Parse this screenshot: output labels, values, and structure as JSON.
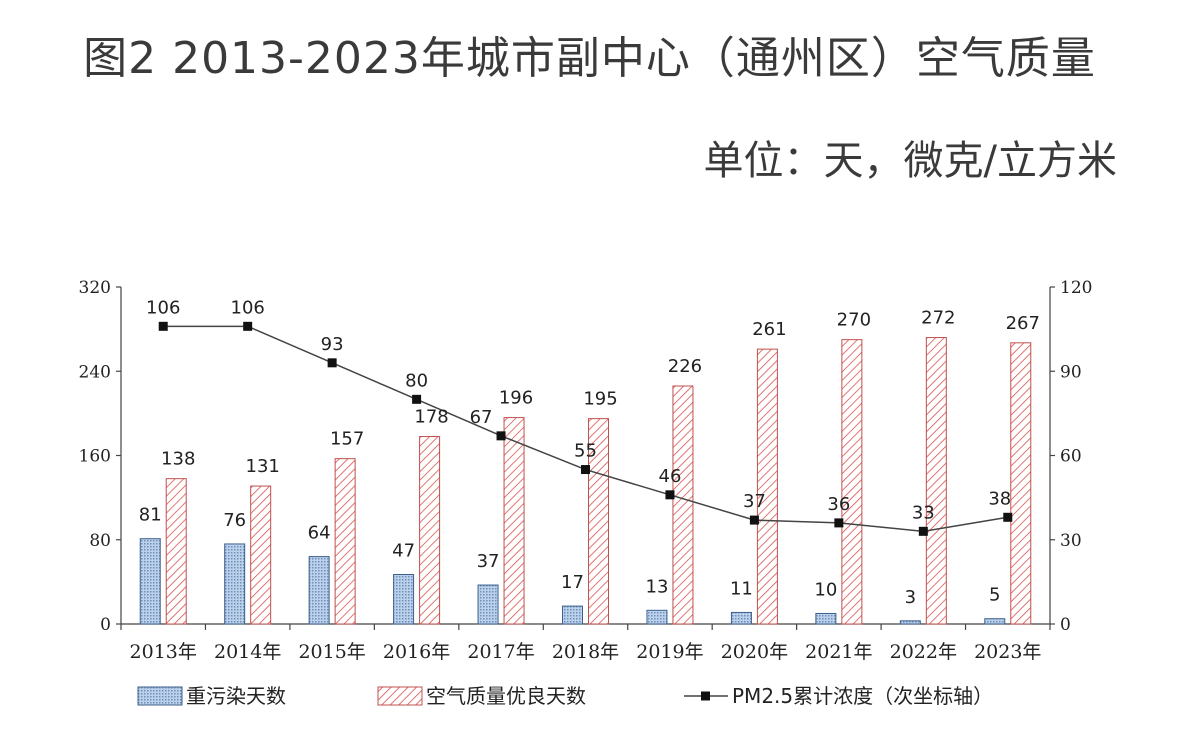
{
  "title": "图2  2013-2023年城市副中心（通州区）空气质量",
  "unit": "单位：天，微克/立方米",
  "chart_data": {
    "type": "bar",
    "categories": [
      "2013年",
      "2014年",
      "2015年",
      "2016年",
      "2017年",
      "2018年",
      "2019年",
      "2020年",
      "2021年",
      "2022年",
      "2023年"
    ],
    "ylim": [
      0,
      320
    ],
    "yticks": [
      "0",
      "80",
      "160",
      "240",
      "320"
    ],
    "y2lim": [
      0,
      120
    ],
    "y2ticks": [
      "0",
      "30",
      "60",
      "90",
      "120"
    ],
    "series": [
      {
        "name": "重污染天数",
        "axis": "left",
        "type": "bar",
        "color": "#a9c3e2",
        "values": [
          81,
          76,
          64,
          47,
          37,
          17,
          13,
          11,
          10,
          3,
          5
        ]
      },
      {
        "name": "空气质量优良天数",
        "axis": "left",
        "type": "bar",
        "color": "#e07a7a",
        "values": [
          138,
          131,
          157,
          178,
          196,
          195,
          226,
          261,
          270,
          272,
          267
        ]
      },
      {
        "name": "PM2.5累计浓度（次坐标轴）",
        "axis": "right",
        "type": "line",
        "color": "#222222",
        "values": [
          106,
          106,
          93,
          80,
          67,
          55,
          46,
          37,
          36,
          33,
          38
        ]
      }
    ],
    "legend_position": "bottom"
  }
}
